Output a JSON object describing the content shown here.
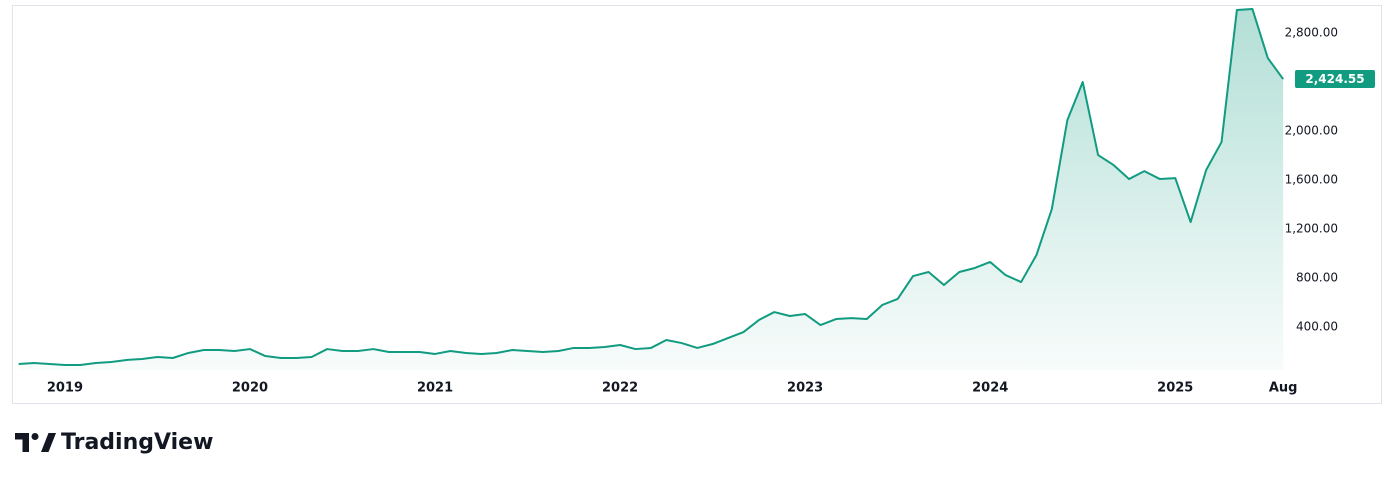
{
  "chart_data": {
    "type": "line",
    "color": "#119b80",
    "x": [
      2018.75,
      2018.833,
      2018.917,
      2019,
      2019.083,
      2019.167,
      2019.25,
      2019.333,
      2019.417,
      2019.5,
      2019.583,
      2019.667,
      2019.75,
      2019.833,
      2019.917,
      2020,
      2020.083,
      2020.167,
      2020.25,
      2020.333,
      2020.417,
      2020.5,
      2020.583,
      2020.667,
      2020.75,
      2020.833,
      2020.917,
      2021,
      2021.083,
      2021.167,
      2021.25,
      2021.333,
      2021.417,
      2021.5,
      2021.583,
      2021.667,
      2021.75,
      2021.833,
      2021.917,
      2022,
      2022.083,
      2022.167,
      2022.25,
      2022.333,
      2022.417,
      2022.5,
      2022.583,
      2022.667,
      2022.75,
      2022.833,
      2022.917,
      2023,
      2023.083,
      2023.167,
      2023.25,
      2023.333,
      2023.417,
      2023.5,
      2023.583,
      2023.667,
      2023.75,
      2023.833,
      2023.917,
      2024,
      2024.083,
      2024.167,
      2024.25,
      2024.333,
      2024.417,
      2024.5,
      2024.583,
      2024.667,
      2024.75,
      2024.833,
      2024.917,
      2025,
      2025.083,
      2025.167,
      2025.25,
      2025.333,
      2025.417,
      2025.5,
      2025.583
    ],
    "values": [
      98,
      106,
      98,
      90,
      90,
      106,
      114,
      131,
      139,
      155,
      147,
      188,
      212,
      212,
      204,
      220,
      163,
      147,
      147,
      155,
      220,
      204,
      204,
      220,
      196,
      196,
      196,
      180,
      204,
      188,
      180,
      188,
      212,
      204,
      196,
      204,
      229,
      229,
      237,
      253,
      220,
      229,
      294,
      269,
      229,
      261,
      310,
      359,
      457,
      522,
      490,
      506,
      416,
      465,
      473,
      465,
      580,
      629,
      816,
      849,
      743,
      849,
      882,
      931,
      824,
      767,
      988,
      1363,
      2090,
      2400,
      1804,
      1722,
      1608,
      1673,
      1608,
      1616,
      1257,
      1682,
      1910,
      2988,
      2996,
      2596,
      2424.55
    ],
    "value_labels": [
      null,
      null,
      null,
      null,
      null,
      null,
      null,
      null,
      null,
      null,
      null,
      null,
      null,
      null,
      null,
      null,
      null,
      null,
      null,
      null,
      null,
      null,
      null,
      null,
      null,
      null,
      null,
      null,
      null,
      null,
      null,
      null,
      null,
      null,
      null,
      null,
      null,
      null,
      null,
      null,
      null,
      null,
      null,
      null,
      null,
      null,
      null,
      null,
      null,
      null,
      null,
      null,
      null,
      null,
      null,
      null,
      null,
      null,
      null,
      null,
      null,
      null,
      null,
      null,
      null,
      null,
      null,
      null,
      null,
      null,
      null,
      null,
      null,
      null,
      null,
      null,
      null,
      null,
      null,
      null,
      null,
      null,
      "2,424.55"
    ],
    "xlim": [
      2018.714,
      2025.62
    ],
    "xticks": [
      2019,
      2020,
      2021,
      2022,
      2023,
      2024,
      2025,
      {
        "value": 2025.583,
        "label": "Aug"
      }
    ],
    "ylim": [
      49,
      3029
    ],
    "yticks": [
      {
        "value": 400,
        "label": "400.00"
      },
      {
        "value": 800,
        "label": "800.00"
      },
      {
        "value": 1200,
        "label": "1,200.00"
      },
      {
        "value": 1600,
        "label": "1,600.00"
      },
      {
        "value": 2000,
        "label": "2,000.00"
      },
      {
        "value": 2800,
        "label": "2,800.00"
      }
    ],
    "grid": false
  },
  "brand": "TradingView"
}
